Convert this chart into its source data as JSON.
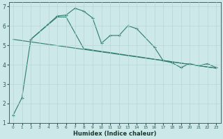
{
  "xlabel": "Humidex (Indice chaleur)",
  "background_color": "#cce8e8",
  "line_color": "#2e7d6e",
  "xlim": [
    -0.5,
    23.5
  ],
  "ylim": [
    1,
    7.2
  ],
  "xticks": [
    0,
    1,
    2,
    3,
    4,
    5,
    6,
    7,
    8,
    9,
    10,
    11,
    12,
    13,
    14,
    15,
    16,
    17,
    18,
    19,
    20,
    21,
    22,
    23
  ],
  "yticks": [
    1,
    2,
    3,
    4,
    5,
    6,
    7
  ],
  "series1_x": [
    0,
    1,
    2,
    5,
    6,
    7,
    8,
    9,
    10,
    11,
    12,
    13,
    14,
    16,
    17,
    18,
    19,
    20,
    21,
    22,
    23
  ],
  "series1_y": [
    1.4,
    2.3,
    5.3,
    6.5,
    6.55,
    6.9,
    6.75,
    6.4,
    5.1,
    5.5,
    5.5,
    6.0,
    5.85,
    4.9,
    4.2,
    4.1,
    3.85,
    4.05,
    3.95,
    4.05,
    3.85
  ],
  "series2_x": [
    2,
    5,
    6,
    8,
    9,
    10,
    11,
    12,
    13,
    14,
    16,
    17,
    18,
    19,
    20,
    21,
    22,
    23
  ],
  "series2_y": [
    5.3,
    6.45,
    6.45,
    4.82,
    4.75,
    4.68,
    4.62,
    4.55,
    4.48,
    4.42,
    4.28,
    4.22,
    4.15,
    4.08,
    4.02,
    3.95,
    3.88,
    3.82
  ],
  "series3_x": [
    0,
    23
  ],
  "series3_y": [
    5.3,
    3.82
  ]
}
